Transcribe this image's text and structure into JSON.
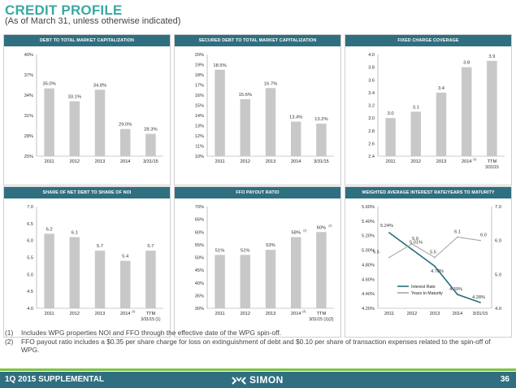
{
  "header": {
    "title": "CREDIT PROFILE",
    "subtitle": "(As of March 31, unless otherwise indicated)"
  },
  "footnotes": [
    {
      "num": "(1)",
      "text": "Includes WPG properties NOI and FFO through the effective date of the WPG spin-off."
    },
    {
      "num": "(2)",
      "text": "FFO payout ratio includes a $0.35 per share charge for loss on extinguishment of debt and $0.10 per share of transaction expenses related to the spin-off of WPG."
    }
  ],
  "footer": {
    "left": "1Q 2015 SUPPLEMENTAL",
    "brand": "SIMON",
    "page": "36"
  },
  "colors": {
    "accent_title": "#3aa9a3",
    "header_bar": "#2f6f80",
    "bar": "#c8c8c8",
    "green_rule": "#7dc242",
    "line_dark": "#2a6f7c",
    "line_light": "#a8a8a8"
  },
  "chart_data": [
    {
      "type": "bar",
      "title": "DEBT TO TOTAL MARKET CAPITALIZATION",
      "categories": [
        "2011",
        "2012",
        "2013",
        "2014",
        "3/31/15"
      ],
      "category_sup": [
        "",
        "",
        "",
        "",
        ""
      ],
      "category_sub": [
        "",
        "",
        "",
        "",
        ""
      ],
      "values": [
        35.0,
        33.1,
        34.8,
        29.0,
        28.3
      ],
      "labels": [
        "35.0%",
        "33.1%",
        "34.8%",
        "29.0%",
        "28.3%"
      ],
      "label_sup": [
        "",
        "",
        "",
        "",
        ""
      ],
      "ylim": [
        25,
        40
      ],
      "yticks": [
        25,
        28,
        31,
        34,
        37,
        40
      ],
      "ytick_labels": [
        "25%",
        "28%",
        "31%",
        "34%",
        "37%",
        "40%"
      ]
    },
    {
      "type": "bar",
      "title": "SECURED DEBT TO TOTAL MARKET CAPITALIZATION",
      "categories": [
        "2011",
        "2012",
        "2013",
        "2014",
        "3/31/15"
      ],
      "category_sup": [
        "",
        "",
        "",
        "",
        ""
      ],
      "category_sub": [
        "",
        "",
        "",
        "",
        ""
      ],
      "values": [
        18.5,
        15.6,
        16.7,
        13.4,
        13.2
      ],
      "labels": [
        "18.5%",
        "15.6%",
        "16.7%",
        "13.4%",
        "13.2%"
      ],
      "label_sup": [
        "",
        "",
        "",
        "",
        ""
      ],
      "ylim": [
        10,
        20
      ],
      "yticks": [
        10,
        11,
        12,
        13,
        14,
        15,
        16,
        17,
        18,
        19,
        20
      ],
      "ytick_labels": [
        "10%",
        "11%",
        "12%",
        "13%",
        "14%",
        "15%",
        "16%",
        "17%",
        "18%",
        "19%",
        "20%"
      ]
    },
    {
      "type": "bar",
      "title": "FIXED CHARGE COVERAGE",
      "categories": [
        "2011",
        "2012",
        "2013",
        "2014",
        "TTM"
      ],
      "category_sup": [
        "",
        "",
        "",
        "(1)",
        ""
      ],
      "category_sub": [
        "",
        "",
        "",
        "",
        "3/31/15"
      ],
      "values": [
        3.0,
        3.1,
        3.4,
        3.8,
        3.9
      ],
      "labels": [
        "3.0",
        "3.1",
        "3.4",
        "3.8",
        "3.9"
      ],
      "label_sup": [
        "",
        "",
        "",
        "",
        ""
      ],
      "ylim": [
        2.4,
        4.0
      ],
      "yticks": [
        2.4,
        2.6,
        2.8,
        3.0,
        3.2,
        3.4,
        3.6,
        3.8,
        4.0
      ],
      "ytick_labels": [
        "2.4",
        "2.6",
        "2.8",
        "3.0",
        "3.2",
        "3.4",
        "3.6",
        "3.8",
        "4.0"
      ]
    },
    {
      "type": "bar",
      "title": "SHARE OF NET DEBT TO SHARE OF NOI",
      "categories": [
        "2011",
        "2012",
        "2013",
        "2014",
        "TTM"
      ],
      "category_sup": [
        "",
        "",
        "",
        "(1)",
        ""
      ],
      "category_sub": [
        "",
        "",
        "",
        "",
        "3/31/15 (1)"
      ],
      "values": [
        6.2,
        6.1,
        5.7,
        5.4,
        5.7
      ],
      "labels": [
        "6.2",
        "6.1",
        "5.7",
        "5.4",
        "5.7"
      ],
      "label_sup": [
        "",
        "",
        "",
        "",
        ""
      ],
      "ylim": [
        4.0,
        7.0
      ],
      "yticks": [
        4.0,
        4.5,
        5.0,
        5.5,
        6.0,
        6.5,
        7.0
      ],
      "ytick_labels": [
        "4.0",
        "4.5",
        "5.0",
        "5.5",
        "6.0",
        "6.5",
        "7.0"
      ]
    },
    {
      "type": "bar",
      "title": "FFO PAYOUT RATIO",
      "categories": [
        "2011",
        "2012",
        "2013",
        "2014",
        "TTM"
      ],
      "category_sup": [
        "",
        "",
        "",
        "(2)",
        ""
      ],
      "category_sub": [
        "",
        "",
        "",
        "",
        "3/31/15 (1)(2)"
      ],
      "values": [
        51,
        51,
        53,
        58,
        60
      ],
      "labels": [
        "51%",
        "51%",
        "53%",
        "58%",
        "60%"
      ],
      "label_sup": [
        "",
        "",
        "",
        "(2)",
        "(2)"
      ],
      "ylim": [
        30,
        70
      ],
      "yticks": [
        30,
        35,
        40,
        45,
        50,
        55,
        60,
        65,
        70
      ],
      "ytick_labels": [
        "30%",
        "35%",
        "40%",
        "45%",
        "50%",
        "55%",
        "60%",
        "65%",
        "70%"
      ]
    },
    {
      "type": "line",
      "title": "WEIGHTED AVERAGE INTEREST RATE/YEARS TO MATURITY",
      "categories": [
        "2011",
        "2012",
        "2013",
        "2014",
        "3/31/15"
      ],
      "series": [
        {
          "name": "Interest Rate",
          "axis": "left",
          "values": [
            5.24,
            5.01,
            4.78,
            4.39,
            4.28
          ],
          "labels": [
            "5.24%",
            "5.01%",
            "4.78%",
            "4.39%",
            "4.28%"
          ]
        },
        {
          "name": "Years to Maturity",
          "axis": "right",
          "values": [
            5.5,
            5.9,
            5.5,
            6.1,
            6.0
          ],
          "labels": [
            "5.5",
            "5.9",
            "5.5",
            "6.1",
            "6.0"
          ]
        }
      ],
      "ylim_left": [
        4.2,
        5.6
      ],
      "yticks_left": [
        4.2,
        4.4,
        4.6,
        4.8,
        5.0,
        5.2,
        5.4,
        5.6
      ],
      "ytick_labels_left": [
        "4.20%",
        "4.40%",
        "4.60%",
        "4.80%",
        "5.00%",
        "5.20%",
        "5.40%",
        "5.60%"
      ],
      "ylim_right": [
        4.0,
        7.0
      ],
      "yticks_right": [
        4.0,
        5.0,
        6.0,
        7.0
      ],
      "ytick_labels_right": [
        "4.0",
        "5.0",
        "6.0",
        "7.0"
      ],
      "legend_position": "bottom-left"
    }
  ]
}
